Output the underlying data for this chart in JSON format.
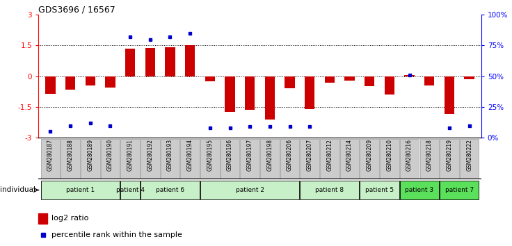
{
  "title": "GDS3696 / 16567",
  "samples": [
    "GSM280187",
    "GSM280188",
    "GSM280189",
    "GSM280190",
    "GSM280191",
    "GSM280192",
    "GSM280193",
    "GSM280194",
    "GSM280195",
    "GSM280196",
    "GSM280197",
    "GSM280198",
    "GSM280206",
    "GSM280207",
    "GSM280212",
    "GSM280214",
    "GSM280209",
    "GSM280210",
    "GSM280216",
    "GSM280218",
    "GSM280219",
    "GSM280222"
  ],
  "log2_ratio": [
    -0.85,
    -0.65,
    -0.45,
    -0.55,
    1.35,
    1.38,
    1.42,
    1.52,
    -0.25,
    -1.75,
    -1.65,
    -2.1,
    -0.6,
    -1.6,
    -0.3,
    -0.2,
    -0.5,
    -0.9,
    0.05,
    -0.45,
    -1.85,
    -0.15
  ],
  "percentile_rank": [
    5,
    10,
    12,
    10,
    82,
    80,
    82,
    85,
    8,
    8,
    9,
    9,
    9,
    9,
    null,
    null,
    null,
    null,
    51,
    null,
    8,
    10
  ],
  "patients": [
    {
      "label": "patient 1",
      "start": 0,
      "end": 4,
      "color": "#c8f0c8"
    },
    {
      "label": "patient 4",
      "start": 4,
      "end": 5,
      "color": "#c8f0c8"
    },
    {
      "label": "patient 6",
      "start": 5,
      "end": 8,
      "color": "#c8f0c8"
    },
    {
      "label": "patient 2",
      "start": 8,
      "end": 13,
      "color": "#c8f0c8"
    },
    {
      "label": "patient 8",
      "start": 13,
      "end": 16,
      "color": "#c8f0c8"
    },
    {
      "label": "patient 5",
      "start": 16,
      "end": 18,
      "color": "#c8f0c8"
    },
    {
      "label": "patient 3",
      "start": 18,
      "end": 20,
      "color": "#5ae05a"
    },
    {
      "label": "patient 7",
      "start": 20,
      "end": 22,
      "color": "#5ae05a"
    }
  ],
  "ylim": [
    -3,
    3
  ],
  "y_ticks_left": [
    -3,
    -1.5,
    0,
    1.5,
    3
  ],
  "y_ticks_right_vals": [
    0,
    25,
    50,
    75,
    100
  ],
  "y_ticks_right_pos": [
    -3,
    -1.5,
    0,
    1.5,
    3
  ],
  "hlines": [
    -1.5,
    0,
    1.5
  ],
  "bar_color": "#cc0000",
  "dot_color": "#0000cc",
  "bar_width": 0.5,
  "sample_box_color": "#cccccc",
  "sample_box_edge": "#888888"
}
